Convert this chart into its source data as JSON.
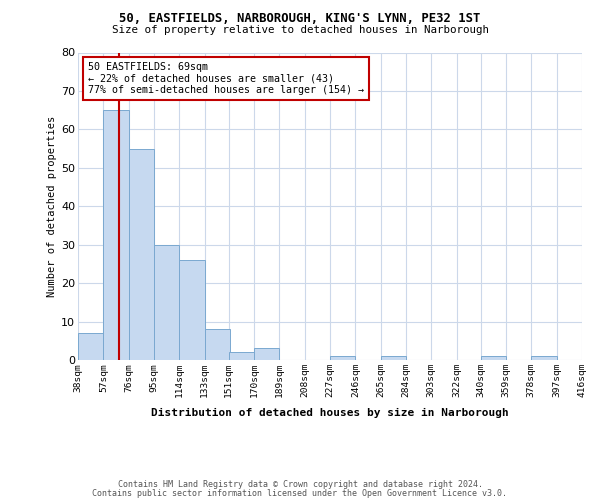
{
  "title1": "50, EASTFIELDS, NARBOROUGH, KING'S LYNN, PE32 1ST",
  "title2": "Size of property relative to detached houses in Narborough",
  "xlabel": "Distribution of detached houses by size in Narborough",
  "ylabel": "Number of detached properties",
  "bin_labels": [
    "38sqm",
    "57sqm",
    "76sqm",
    "95sqm",
    "114sqm",
    "133sqm",
    "151sqm",
    "170sqm",
    "189sqm",
    "208sqm",
    "227sqm",
    "246sqm",
    "265sqm",
    "284sqm",
    "303sqm",
    "322sqm",
    "340sqm",
    "359sqm",
    "378sqm",
    "397sqm",
    "416sqm"
  ],
  "bar_heights": [
    7,
    65,
    55,
    30,
    26,
    8,
    2,
    3,
    0,
    0,
    1,
    0,
    1,
    0,
    0,
    0,
    1,
    0,
    1,
    0
  ],
  "bar_color": "#c6d9f0",
  "bar_edge_color": "#7aa8d0",
  "vline_x": 69,
  "vline_color": "#c00000",
  "annotation_line1": "50 EASTFIELDS: 69sqm",
  "annotation_line2": "← 22% of detached houses are smaller (43)",
  "annotation_line3": "77% of semi-detached houses are larger (154) →",
  "annotation_box_color": "#c00000",
  "ylim": [
    0,
    80
  ],
  "yticks": [
    0,
    10,
    20,
    30,
    40,
    50,
    60,
    70,
    80
  ],
  "footer1": "Contains HM Land Registry data © Crown copyright and database right 2024.",
  "footer2": "Contains public sector information licensed under the Open Government Licence v3.0.",
  "background_color": "#ffffff",
  "grid_color": "#ccd8ea"
}
